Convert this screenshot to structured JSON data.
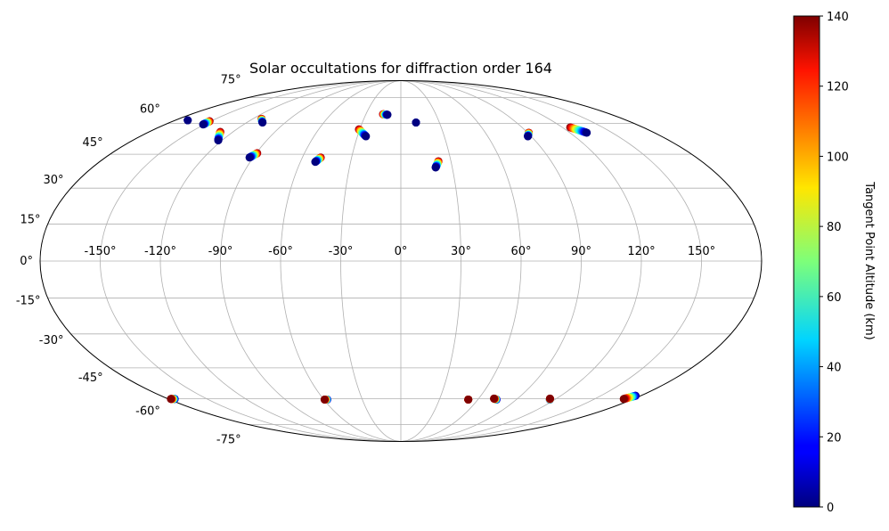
{
  "chart_data": {
    "type": "scatter",
    "projection": "mollweide",
    "title": "Solar occultations for diffraction order 164",
    "grid": true,
    "longitude_ticks": [
      -150,
      -120,
      -90,
      -60,
      -30,
      0,
      30,
      60,
      90,
      120,
      150
    ],
    "longitude_tick_labels": [
      "-150°",
      "-120°",
      "-90°",
      "-60°",
      "-30°",
      "0°",
      "30°",
      "60°",
      "90°",
      "120°",
      "150°"
    ],
    "latitude_ticks": [
      -75,
      -60,
      -45,
      -30,
      -15,
      0,
      15,
      30,
      45,
      60,
      75
    ],
    "latitude_tick_labels": [
      "-75°",
      "-60°",
      "-45°",
      "-30°",
      "-15°",
      "0°",
      "15°",
      "30°",
      "45°",
      "60°",
      "75°"
    ],
    "colorbar": {
      "label": "Tangent Point Altitude (km)",
      "colormap": "jet",
      "range": [
        0,
        140
      ],
      "ticks": [
        0,
        20,
        40,
        60,
        80,
        100,
        120,
        140
      ],
      "tick_labels": [
        "0",
        "20",
        "40",
        "60",
        "80",
        "100",
        "120",
        "140"
      ],
      "placement": "right"
    },
    "occultations": [
      {
        "from": {
          "lon": -170,
          "lat": 61.7,
          "alt": 10
        },
        "to": {
          "lon": -170,
          "lat": 61.7,
          "alt": 0
        }
      },
      {
        "from": {
          "lon": -151,
          "lat": 61.2,
          "alt": 140
        },
        "to": {
          "lon": -151,
          "lat": 59.5,
          "alt": 0
        }
      },
      {
        "from": {
          "lon": -129,
          "lat": 55.7,
          "alt": 140
        },
        "to": {
          "lon": -122.5,
          "lat": 51.5,
          "alt": 0
        }
      },
      {
        "from": {
          "lon": -113,
          "lat": 62.5,
          "alt": 140
        },
        "to": {
          "lon": -107.7,
          "lat": 60.5,
          "alt": 0
        }
      },
      {
        "from": {
          "lon": -89.4,
          "lat": 45.5,
          "alt": 140
        },
        "to": {
          "lon": -92.2,
          "lat": 43.5,
          "alt": 0
        }
      },
      {
        "from": {
          "lon": -48.8,
          "lat": 43.5,
          "alt": 140
        },
        "to": {
          "lon": -51.1,
          "lat": 41.5,
          "alt": 0
        }
      },
      {
        "from": {
          "lon": -30.6,
          "lat": 57.0,
          "alt": 140
        },
        "to": {
          "lon": -24.1,
          "lat": 53.5,
          "alt": 0
        }
      },
      {
        "from": {
          "lon": -15.3,
          "lat": 65.0,
          "alt": 140
        },
        "to": {
          "lon": -11.4,
          "lat": 64.7,
          "alt": 0
        }
      },
      {
        "from": {
          "lon": 11.8,
          "lat": 60.5,
          "alt": 10
        },
        "to": {
          "lon": 11.8,
          "lat": 60.5,
          "alt": 0
        }
      },
      {
        "from": {
          "lon": 22.5,
          "lat": 41.8,
          "alt": 140
        },
        "to": {
          "lon": 20.3,
          "lat": 39.0,
          "alt": 0
        }
      },
      {
        "from": {
          "lon": 90.8,
          "lat": 55.3,
          "alt": 140
        },
        "to": {
          "lon": 87.7,
          "lat": 53.5,
          "alt": 0
        }
      },
      {
        "from": {
          "lon": 125.8,
          "lat": 58.0,
          "alt": 140
        },
        "to": {
          "lon": 132.0,
          "lat": 55.3,
          "alt": 0
        }
      },
      {
        "from": {
          "lon": -175,
          "lat": -60.2,
          "alt": 0
        },
        "to": {
          "lon": -178,
          "lat": -60.2,
          "alt": 140
        }
      },
      {
        "from": {
          "lon": -57.3,
          "lat": -60.5,
          "alt": 0
        },
        "to": {
          "lon": -59.4,
          "lat": -60.5,
          "alt": 140
        }
      },
      {
        "from": {
          "lon": 52.5,
          "lat": -60.5,
          "alt": 0
        },
        "to": {
          "lon": 52.5,
          "lat": -60.5,
          "alt": 140
        }
      },
      {
        "from": {
          "lon": 74.5,
          "lat": -60.5,
          "alt": 0
        },
        "to": {
          "lon": 71.8,
          "lat": -60.0,
          "alt": 140
        }
      },
      {
        "from": {
          "lon": 116,
          "lat": -60.5,
          "alt": 0
        },
        "to": {
          "lon": 115,
          "lat": -60.0,
          "alt": 140
        }
      },
      {
        "from": {
          "lon": 176,
          "lat": -58.5,
          "alt": 0
        },
        "to": {
          "lon": 172.5,
          "lat": -60.2,
          "alt": 140
        }
      }
    ]
  }
}
